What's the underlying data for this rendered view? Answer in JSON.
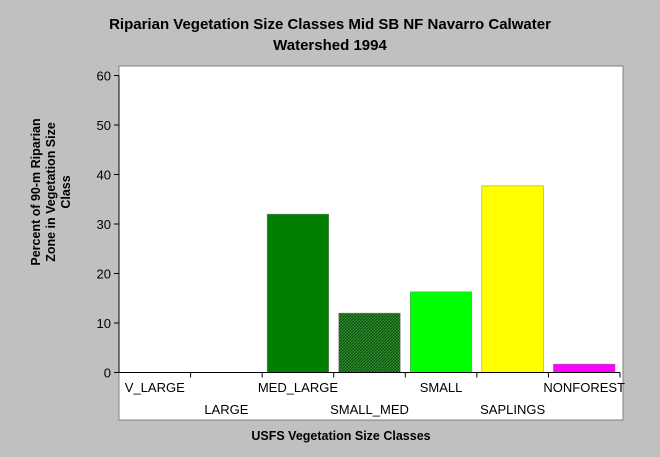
{
  "chart_data": {
    "type": "bar",
    "title_lines": [
      "Riparian Vegetation Size Classes Mid SB NF Navarro Calwater",
      "Watershed 1994"
    ],
    "xlabel": "USFS Vegetation Size Classes",
    "ylabel_lines": [
      "Percent of 90-m Riparian",
      "Zone in Vegetation Size",
      "Class"
    ],
    "categories": [
      "V_LARGE",
      "LARGE",
      "MED_LARGE",
      "SMALL_MED",
      "SMALL",
      "SAPLINGS",
      "NONFOREST"
    ],
    "values": [
      0,
      0,
      32,
      12,
      16.3,
      37.7,
      1.7
    ],
    "colors": [
      "#006400",
      "#006400",
      "#007f00",
      "#2e8b2e",
      "#00ff00",
      "#ffff00",
      "#ff00ff"
    ],
    "patterns": [
      "solid",
      "solid",
      "solid",
      "hatch",
      "solid",
      "solid",
      "solid"
    ],
    "ylim": [
      0,
      60
    ],
    "yticks": [
      "0",
      "10",
      "20",
      "30",
      "40",
      "50",
      "60"
    ],
    "grid": false,
    "legend": "none"
  }
}
